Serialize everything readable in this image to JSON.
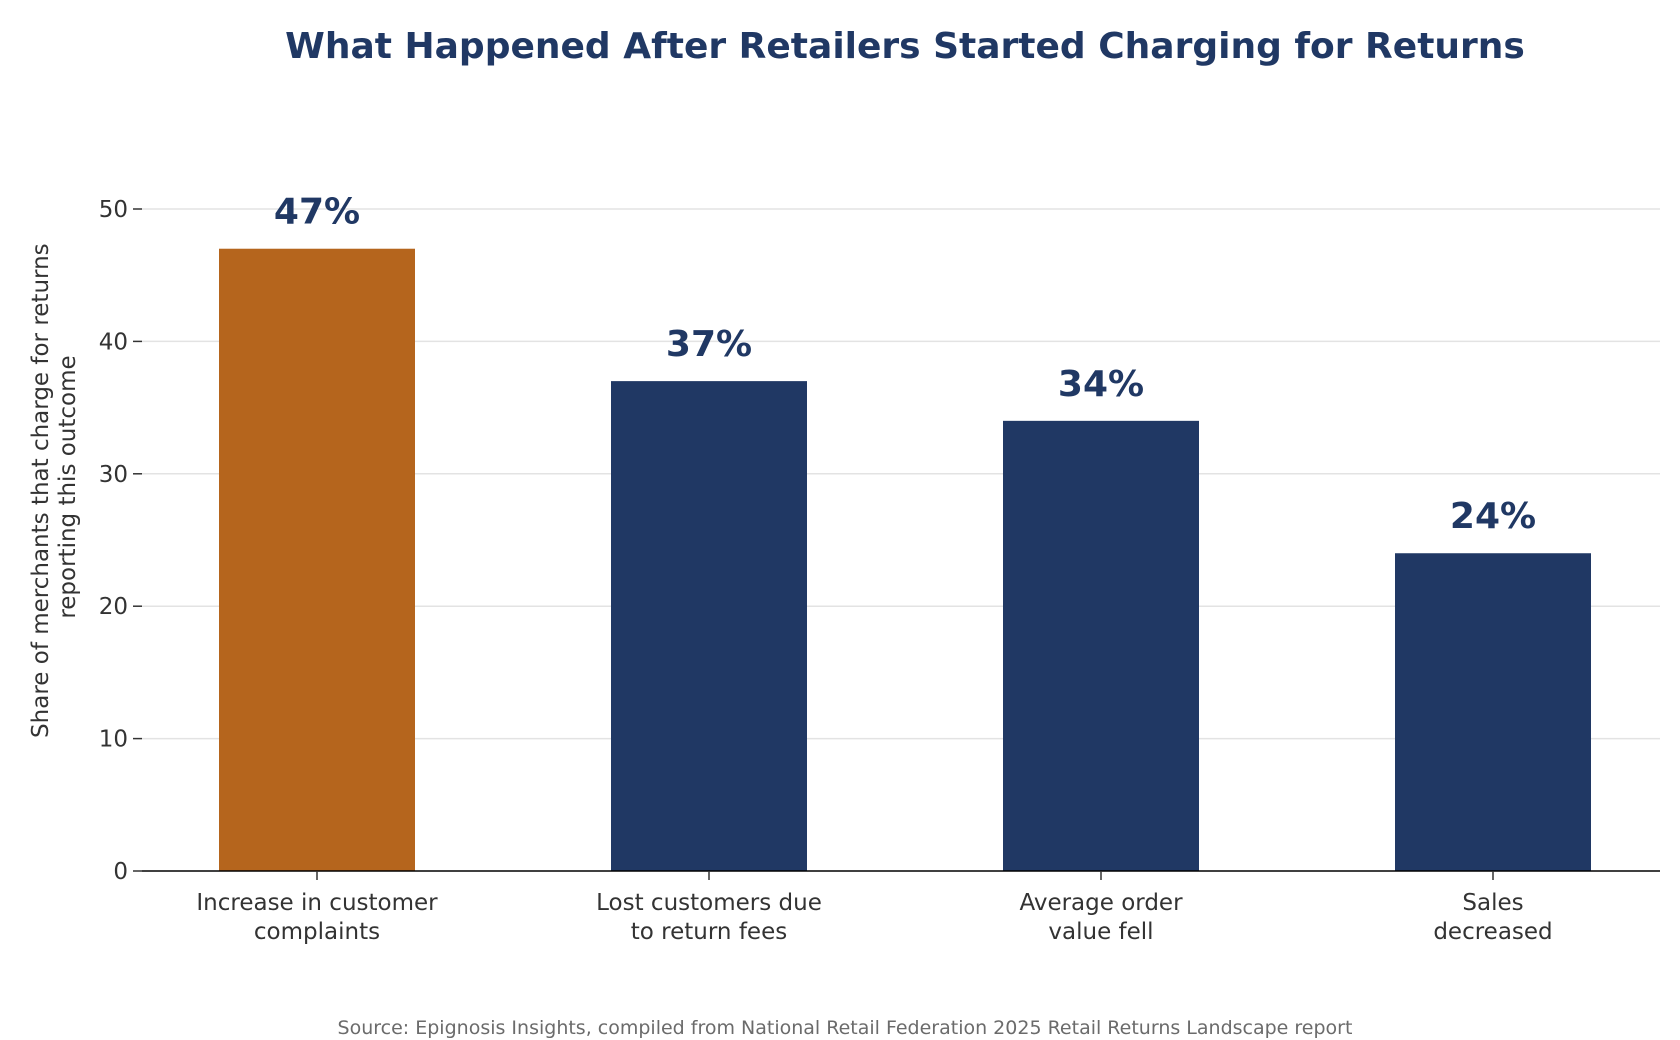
{
  "chart_data": {
    "type": "bar",
    "title": "What Happened After Retailers Started Charging for Returns",
    "ylabel_lines": [
      "Share of merchants that charge for returns",
      "reporting this outcome"
    ],
    "xlabel": "",
    "categories": [
      [
        "Increase in customer",
        "complaints"
      ],
      [
        "Lost customers due",
        "to return fees"
      ],
      [
        "Average order",
        "value fell"
      ],
      [
        "Sales",
        "decreased"
      ]
    ],
    "values": [
      47,
      37,
      34,
      24
    ],
    "value_labels": [
      "47%",
      "37%",
      "34%",
      "24%"
    ],
    "ylim": [
      0,
      50
    ],
    "yticks": [
      0,
      10,
      20,
      30,
      40,
      50
    ],
    "ytick_labels": [
      "0",
      "10",
      "20",
      "30",
      "40",
      "50"
    ],
    "grid": "horizontal",
    "bar_colors": [
      "#b5651d",
      "#203864",
      "#203864",
      "#203864"
    ],
    "title_color": "#203864",
    "value_label_color": "#203864",
    "source": "Source: Epignosis Insights, compiled from National Retail Federation 2025 Retail Returns Landscape report"
  }
}
